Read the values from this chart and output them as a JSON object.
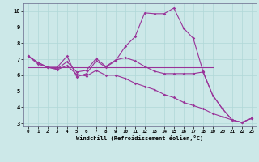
{
  "xlabel": "Windchill (Refroidissement éolien,°C)",
  "x": [
    0,
    1,
    2,
    3,
    4,
    5,
    6,
    7,
    8,
    9,
    10,
    11,
    12,
    13,
    14,
    15,
    16,
    17,
    18,
    19,
    20,
    21,
    22,
    23
  ],
  "line1": [
    7.2,
    6.8,
    6.5,
    6.5,
    7.2,
    5.9,
    6.1,
    6.9,
    6.5,
    6.9,
    7.8,
    8.4,
    9.9,
    9.85,
    9.85,
    10.2,
    8.95,
    8.3,
    6.25,
    4.75,
    3.9,
    3.2,
    3.05,
    3.3
  ],
  "line2": [
    7.2,
    6.8,
    6.5,
    6.4,
    6.85,
    6.2,
    6.3,
    7.05,
    6.55,
    6.95,
    7.1,
    6.9,
    6.55,
    6.25,
    6.1,
    6.1,
    6.1,
    6.1,
    6.2,
    4.75,
    3.9,
    3.2,
    3.05,
    3.3
  ],
  "line3": [
    7.2,
    6.7,
    6.5,
    6.35,
    6.6,
    6.05,
    5.95,
    6.3,
    6.0,
    6.0,
    5.8,
    5.5,
    5.3,
    5.1,
    4.8,
    4.6,
    4.3,
    4.1,
    3.9,
    3.6,
    3.4,
    3.2,
    3.05,
    3.3
  ],
  "line4_x": [
    0,
    1,
    2,
    3,
    4,
    5,
    6,
    7,
    8,
    9,
    10,
    11,
    12,
    13,
    14,
    15,
    16,
    17,
    18,
    19
  ],
  "line4_y": [
    6.5,
    6.5,
    6.5,
    6.5,
    6.5,
    6.5,
    6.5,
    6.5,
    6.5,
    6.5,
    6.5,
    6.5,
    6.5,
    6.5,
    6.5,
    6.5,
    6.5,
    6.5,
    6.5,
    6.5
  ],
  "line_color": "#993399",
  "bg_color": "#cce8e8",
  "grid_color": "#b0d8d8",
  "ylim_min": 2.8,
  "ylim_max": 10.5,
  "xlim_min": -0.5,
  "xlim_max": 23.5,
  "yticks": [
    3,
    4,
    5,
    6,
    7,
    8,
    9,
    10
  ],
  "xticks": [
    0,
    1,
    2,
    3,
    4,
    5,
    6,
    7,
    8,
    9,
    10,
    11,
    12,
    13,
    14,
    15,
    16,
    17,
    18,
    19,
    20,
    21,
    22,
    23
  ]
}
